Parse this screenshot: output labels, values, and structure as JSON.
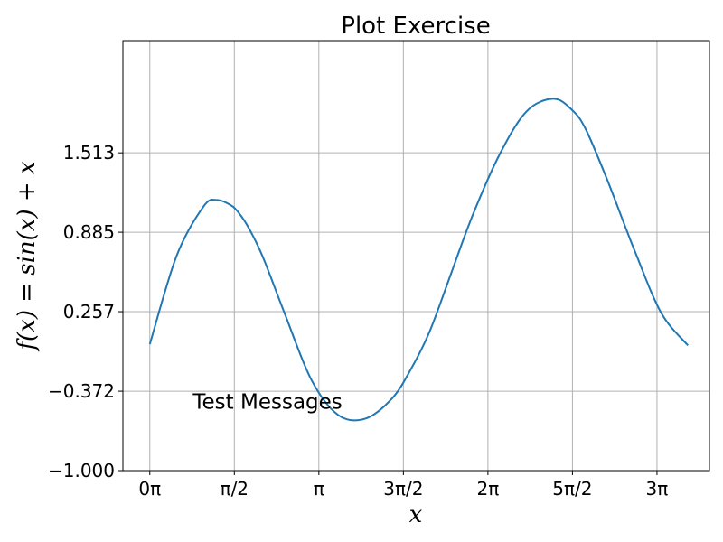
{
  "chart_data": {
    "type": "line",
    "title": "Plot Exercise",
    "xlabel": "x",
    "ylabel": "f(x) = sin(x) + x",
    "xlim": [
      -0.5,
      10.4
    ],
    "ylim": [
      -1.0,
      2.4
    ],
    "x_ticks": [
      {
        "value": 0,
        "label": "0π"
      },
      {
        "value": 1.5708,
        "label": "π/2"
      },
      {
        "value": 3.1416,
        "label": "π"
      },
      {
        "value": 4.7124,
        "label": "3π/2"
      },
      {
        "value": 6.2832,
        "label": "2π"
      },
      {
        "value": 7.854,
        "label": "5π/2"
      },
      {
        "value": 9.4248,
        "label": "3π"
      }
    ],
    "y_ticks": [
      {
        "value": -1.0,
        "label": "−1.000"
      },
      {
        "value": -0.372,
        "label": "−0.372"
      },
      {
        "value": 0.257,
        "label": "0.257"
      },
      {
        "value": 0.885,
        "label": "0.885"
      },
      {
        "value": 1.513,
        "label": "1.513"
      }
    ],
    "grid": true,
    "annotations": [
      {
        "text": "Test Messages",
        "x": 0.8,
        "y": -0.51
      }
    ],
    "series": [
      {
        "color": "#1f77b4",
        "x": [
          0.0,
          0.5,
          1.0,
          1.25,
          1.5,
          1.65,
          1.85,
          2.1,
          2.5,
          3.0,
          3.5,
          4.0,
          4.5,
          4.85,
          5.2,
          5.6,
          6.0,
          6.5,
          7.0,
          7.5,
          7.85,
          8.1,
          8.5,
          9.0,
          9.5,
          10.0
        ],
        "y": [
          0.0,
          0.7,
          1.09,
          1.14,
          1.1,
          1.04,
          0.91,
          0.69,
          0.25,
          -0.28,
          -0.56,
          -0.59,
          -0.43,
          -0.2,
          0.1,
          0.56,
          1.02,
          1.5,
          1.84,
          1.94,
          1.85,
          1.7,
          1.3,
          0.75,
          0.25,
          -0.01
        ]
      }
    ]
  }
}
